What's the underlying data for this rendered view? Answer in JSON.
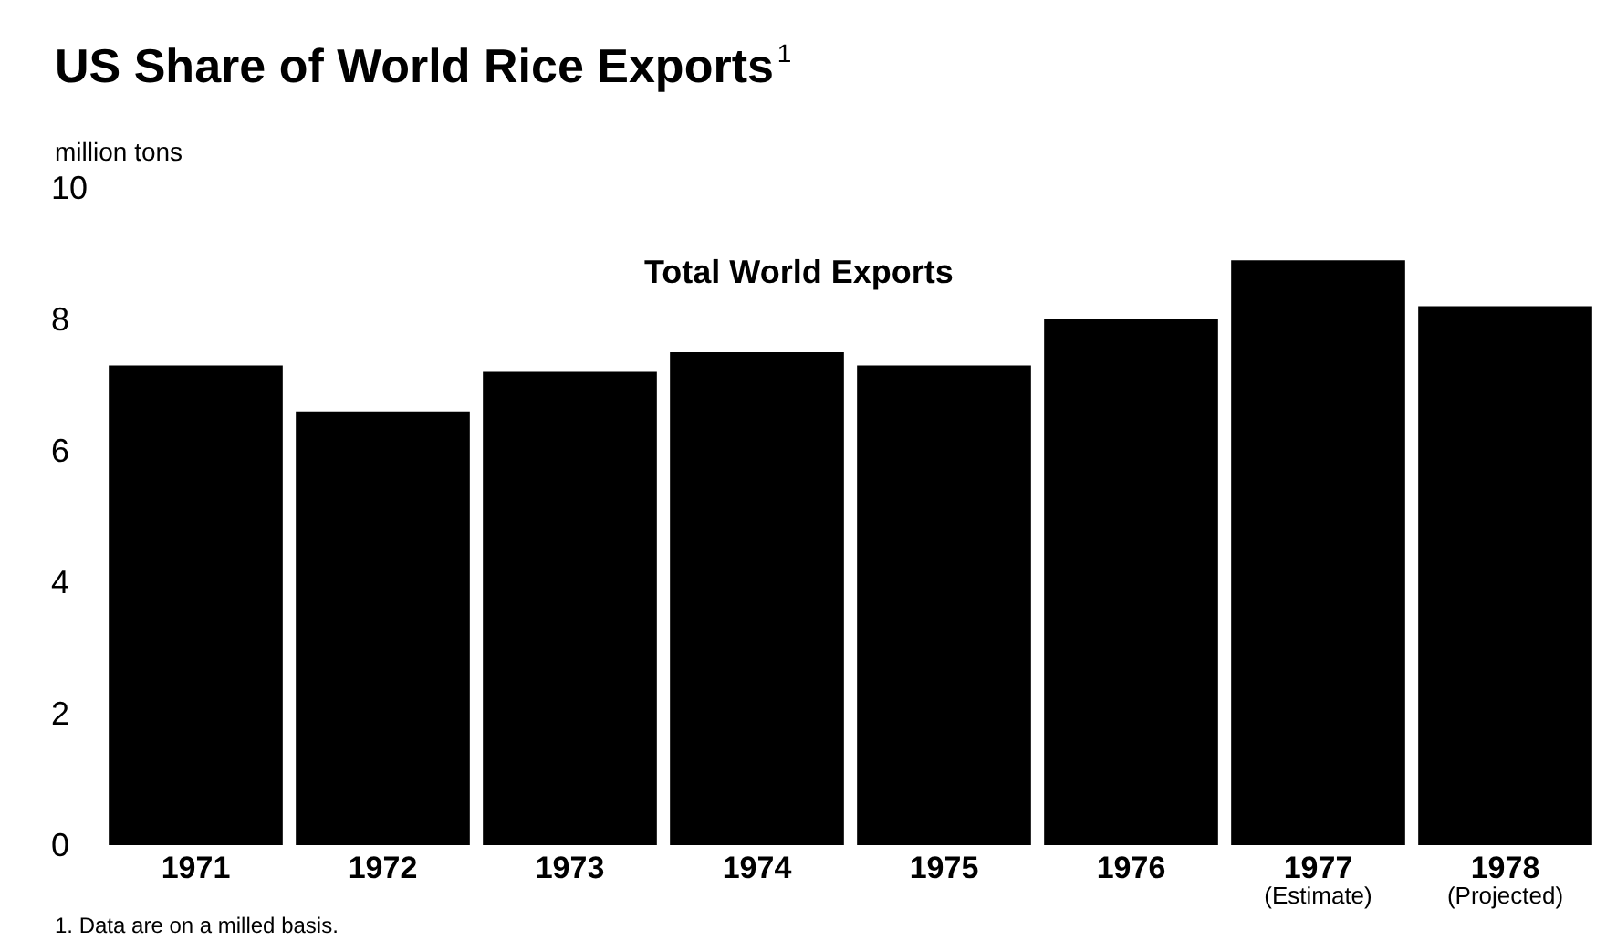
{
  "chart_data": {
    "type": "bar",
    "title": "US Share of World Rice Exports$^{1}$",
    "ylabel": "million tons",
    "categories": [
      "1971",
      "1972",
      "1973",
      "1974",
      "1975",
      "1976",
      "1977\n(Estimate)",
      "1978\n(Projected)"
    ],
    "series": [
      {
        "name": "Total World Exports",
        "color": "#000000",
        "values": [
          7.3,
          6.6,
          7.2,
          7.5,
          7.3,
          8.0,
          8.9,
          8.2
        ]
      }
    ],
    "ylim": [
      0,
      10
    ],
    "yticks": [
      0,
      2,
      4,
      6,
      8,
      10
    ],
    "grid": false,
    "legend": false,
    "annotations": [
      "1. Data are on a milled basis."
    ]
  }
}
